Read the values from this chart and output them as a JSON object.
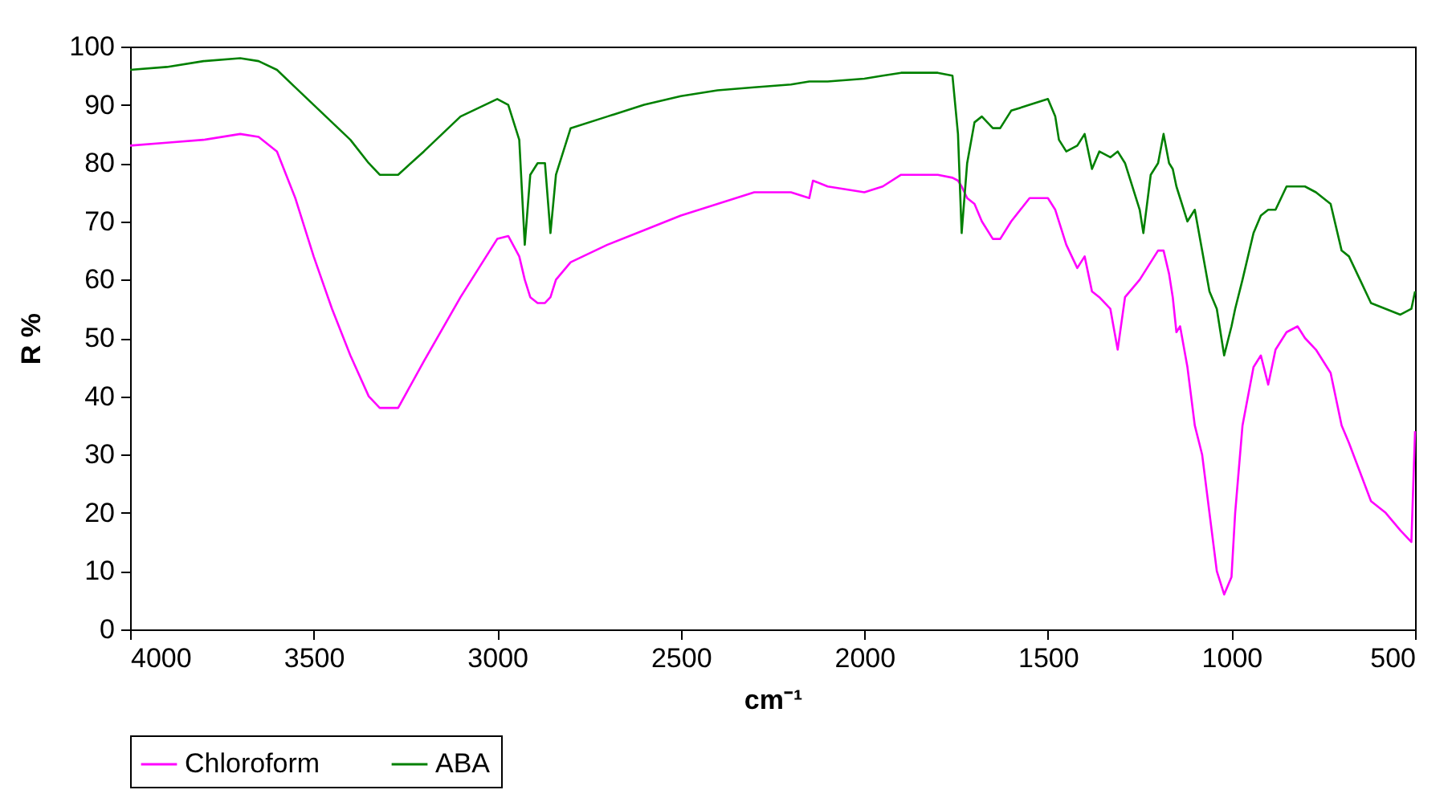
{
  "chart_data": {
    "type": "line",
    "xlabel": "cm⁻¹",
    "ylabel": "R %",
    "xlim": [
      4000,
      500
    ],
    "xticks": [
      4000,
      3500,
      3000,
      2500,
      2000,
      1500,
      1000,
      500
    ],
    "ylim": [
      0,
      100
    ],
    "yticks": [
      0,
      10,
      20,
      30,
      40,
      50,
      60,
      70,
      80,
      90,
      100
    ],
    "grid": false,
    "legend": "bottom",
    "x": [
      4000,
      3900,
      3800,
      3700,
      3650,
      3600,
      3550,
      3500,
      3450,
      3400,
      3350,
      3320,
      3270,
      3200,
      3100,
      3000,
      2970,
      2940,
      2925,
      2910,
      2890,
      2870,
      2855,
      2840,
      2800,
      2700,
      2600,
      2500,
      2400,
      2300,
      2200,
      2150,
      2140,
      2100,
      2000,
      1950,
      1900,
      1800,
      1760,
      1745,
      1735,
      1720,
      1700,
      1680,
      1650,
      1630,
      1600,
      1550,
      1500,
      1480,
      1470,
      1450,
      1420,
      1400,
      1380,
      1360,
      1330,
      1310,
      1290,
      1250,
      1240,
      1220,
      1200,
      1185,
      1170,
      1160,
      1150,
      1140,
      1120,
      1100,
      1080,
      1060,
      1040,
      1020,
      1000,
      990,
      970,
      940,
      920,
      900,
      880,
      850,
      820,
      800,
      770,
      730,
      700,
      680,
      650,
      620,
      580,
      540,
      510,
      500
    ],
    "series": [
      {
        "name": "Chloroform",
        "color": "#ff00ff",
        "values": [
          83,
          83.5,
          84,
          85,
          84.5,
          82,
          74,
          64,
          55,
          47,
          40,
          38,
          38,
          46,
          57,
          67,
          67.5,
          64,
          60,
          57,
          56,
          56,
          57,
          60,
          63,
          66,
          68.5,
          71,
          73,
          75,
          75,
          74,
          77,
          76,
          75,
          76,
          78,
          78,
          77.5,
          77,
          76,
          74,
          73,
          70,
          67,
          67,
          70,
          74,
          74,
          72,
          70,
          66,
          62,
          64,
          58,
          57,
          55,
          48,
          57,
          60,
          61,
          63,
          65,
          65,
          61,
          57,
          51,
          52,
          45,
          35,
          30,
          20,
          10,
          6,
          9,
          20,
          35,
          45,
          47,
          42,
          48,
          51,
          52,
          50,
          48,
          44,
          35,
          32,
          27,
          22,
          20,
          17,
          15,
          34
        ]
      },
      {
        "name": "ABA",
        "color": "#008000",
        "values": [
          96,
          96.5,
          97.5,
          98,
          97.5,
          96,
          93,
          90,
          87,
          84,
          80,
          78,
          78,
          82,
          88,
          91,
          90,
          84,
          66,
          78,
          80,
          80,
          68,
          78,
          86,
          88,
          90,
          91.5,
          92.5,
          93,
          93.5,
          94,
          94,
          94,
          94.5,
          95,
          95.5,
          95.5,
          95,
          85,
          68,
          80,
          87,
          88,
          86,
          86,
          89,
          90,
          91,
          88,
          84,
          82,
          83,
          85,
          79,
          82,
          81,
          82,
          80,
          72,
          68,
          78,
          80,
          85,
          80,
          79,
          76,
          74,
          70,
          72,
          65,
          58,
          55,
          47,
          52,
          55,
          60,
          68,
          71,
          72,
          72,
          76,
          76,
          76,
          75,
          73,
          65,
          64,
          60,
          56,
          55,
          54,
          55,
          58
        ]
      }
    ]
  }
}
